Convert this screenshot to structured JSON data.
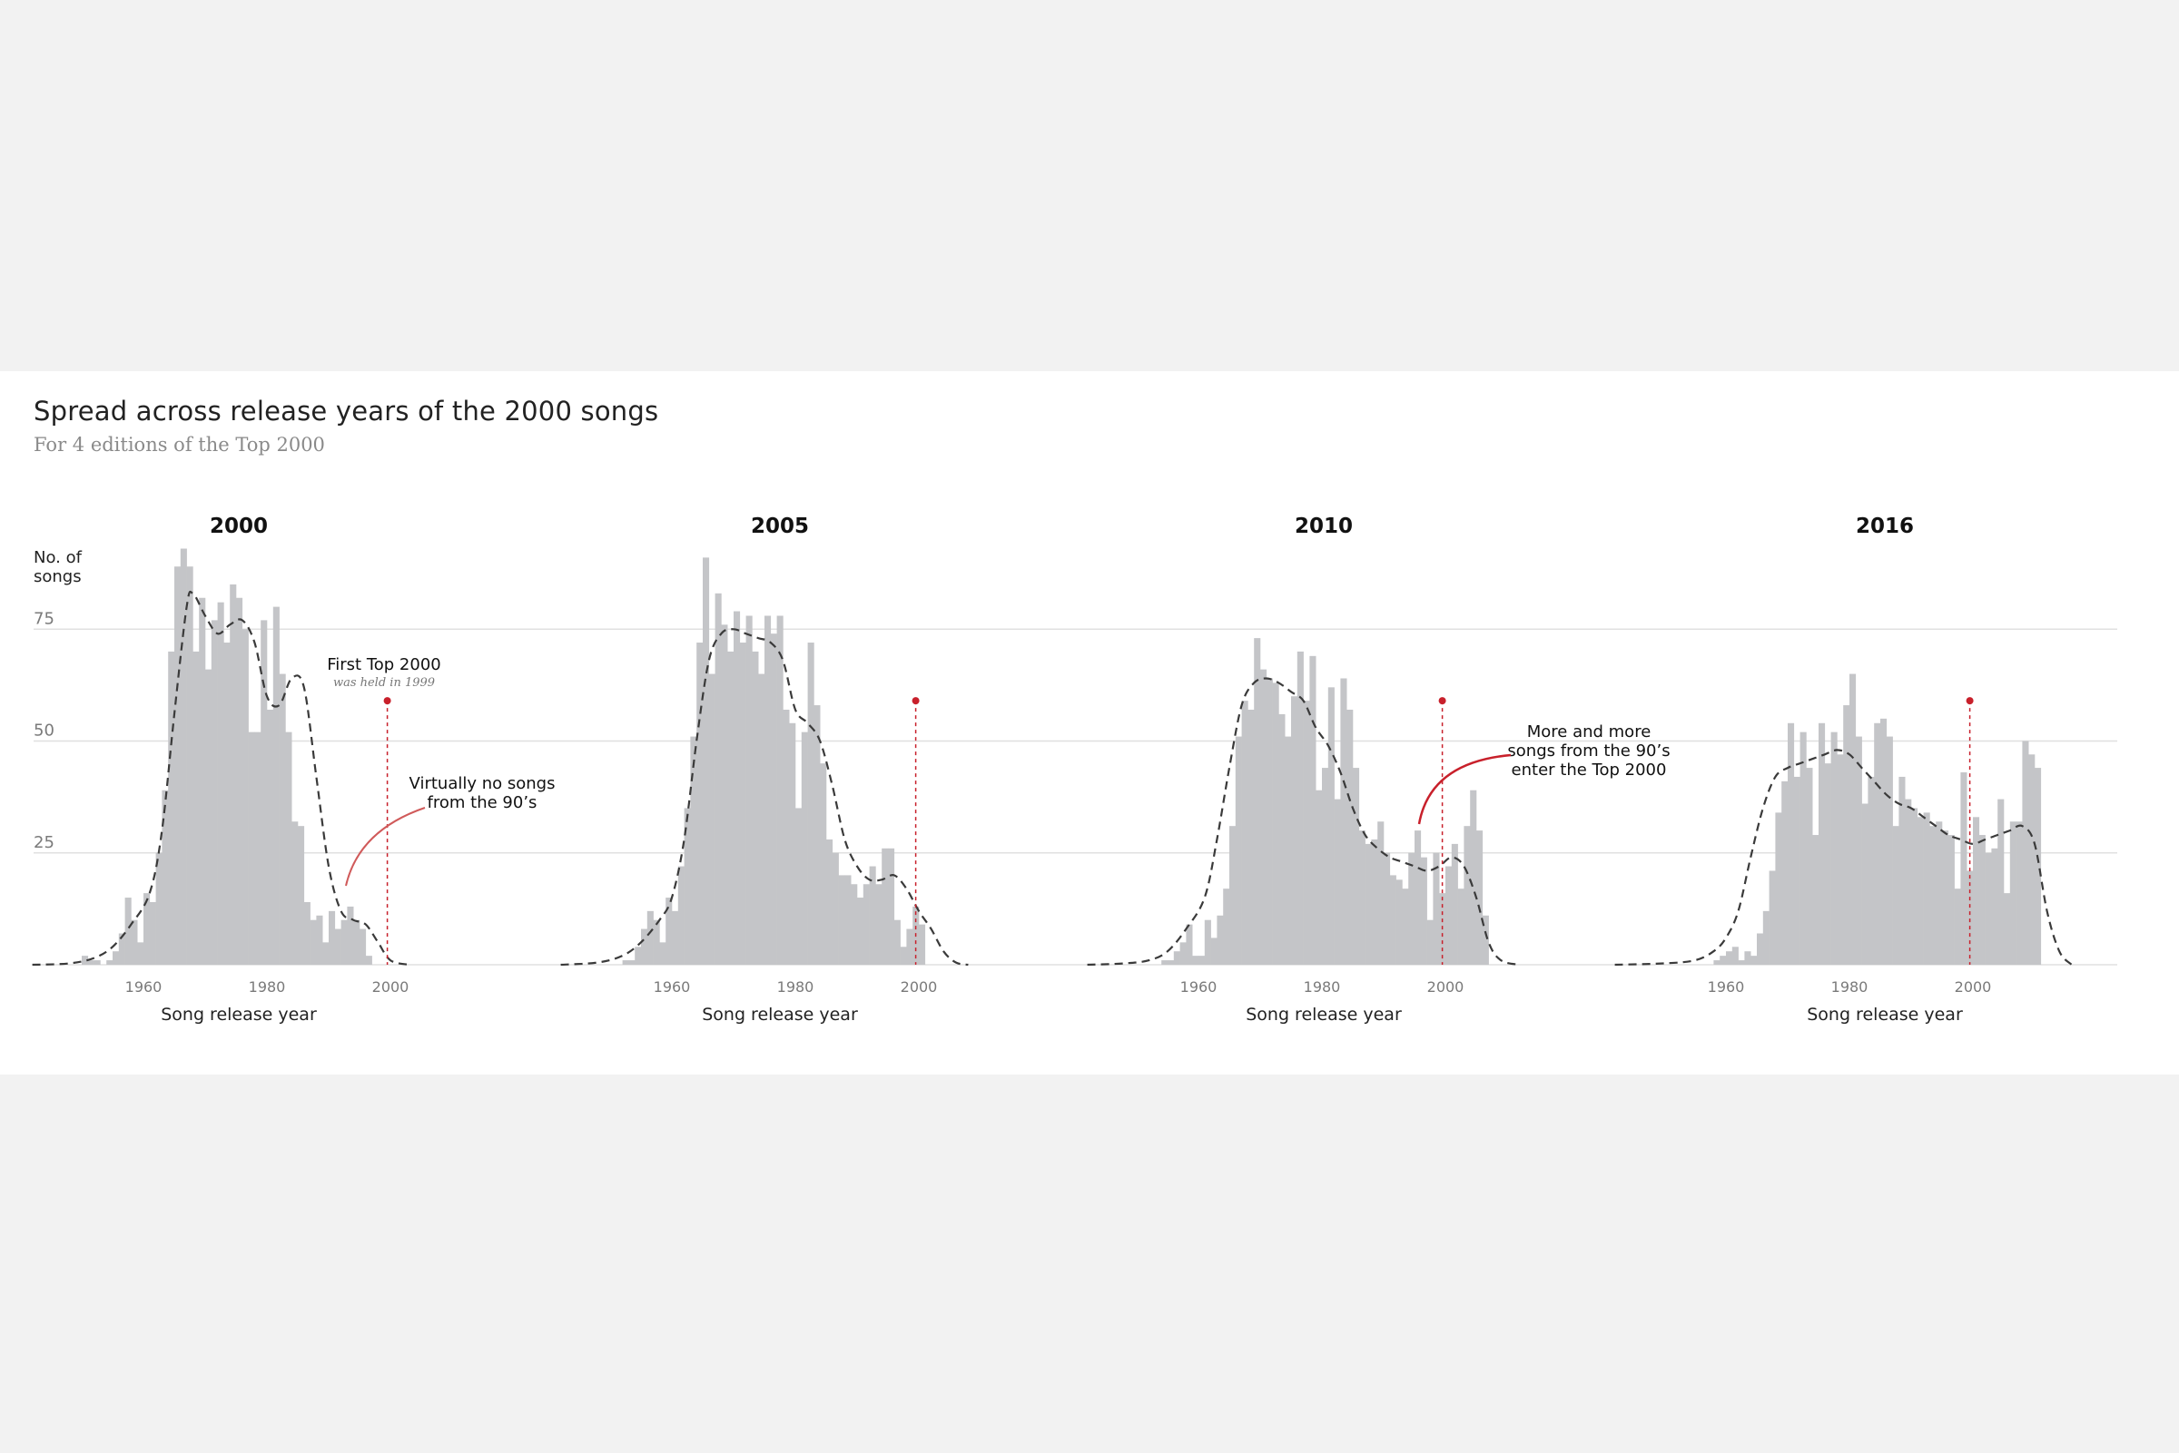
{
  "chart_data": {
    "type": "bar",
    "title": "Spread across release years of the 2000 songs",
    "subtitle": "For 4 editions of the Top 2000",
    "ylabel": [
      "No. of",
      "songs"
    ],
    "xlabel": "Song release year",
    "yticks": [
      25,
      50,
      75
    ],
    "xticks": [
      1960,
      1980,
      2000
    ],
    "ylim": [
      0,
      95
    ],
    "xlim": [
      1942,
      2020
    ],
    "panels": [
      {
        "edition": "2000",
        "x": [
          1950,
          1951,
          1952,
          1953,
          1954,
          1955,
          1956,
          1957,
          1958,
          1959,
          1960,
          1961,
          1962,
          1963,
          1964,
          1965,
          1966,
          1967,
          1968,
          1969,
          1970,
          1971,
          1972,
          1973,
          1974,
          1975,
          1976,
          1977,
          1978,
          1979,
          1980,
          1981,
          1982,
          1983,
          1984,
          1985,
          1986,
          1987,
          1988,
          1989,
          1990,
          1991,
          1992,
          1993,
          1994,
          1995,
          1996,
          1997,
          1998,
          1999
        ],
        "values": [
          2,
          1,
          1,
          0,
          1,
          3,
          7,
          15,
          10,
          5,
          16,
          14,
          25,
          39,
          70,
          89,
          93,
          89,
          70,
          82,
          66,
          77,
          81,
          72,
          85,
          82,
          75,
          52,
          52,
          77,
          57,
          80,
          65,
          52,
          32,
          31,
          14,
          10,
          11,
          5,
          12,
          8,
          10,
          13,
          10,
          8,
          2,
          0,
          0,
          0
        ],
        "density": [
          [
            1942,
            0
          ],
          [
            1948,
            0.3
          ],
          [
            1952,
            1.5
          ],
          [
            1955,
            4
          ],
          [
            1958,
            9
          ],
          [
            1961,
            16
          ],
          [
            1963,
            30
          ],
          [
            1965,
            56
          ],
          [
            1967,
            80
          ],
          [
            1968,
            83
          ],
          [
            1970,
            78
          ],
          [
            1972,
            74
          ],
          [
            1974,
            76
          ],
          [
            1976,
            77
          ],
          [
            1978,
            72
          ],
          [
            1980,
            60
          ],
          [
            1982,
            58
          ],
          [
            1984,
            64
          ],
          [
            1986,
            62
          ],
          [
            1988,
            42
          ],
          [
            1990,
            22
          ],
          [
            1992,
            12
          ],
          [
            1994,
            10
          ],
          [
            1996,
            9
          ],
          [
            1998,
            5
          ],
          [
            2000,
            1
          ],
          [
            2003,
            0
          ]
        ]
      },
      {
        "edition": "2005",
        "x": [
          1950,
          1951,
          1952,
          1953,
          1954,
          1955,
          1956,
          1957,
          1958,
          1959,
          1960,
          1961,
          1962,
          1963,
          1964,
          1965,
          1966,
          1967,
          1968,
          1969,
          1970,
          1971,
          1972,
          1973,
          1974,
          1975,
          1976,
          1977,
          1978,
          1979,
          1980,
          1981,
          1982,
          1983,
          1984,
          1985,
          1986,
          1987,
          1988,
          1989,
          1990,
          1991,
          1992,
          1993,
          1994,
          1995,
          1996,
          1997,
          1998,
          1999,
          2000,
          2001,
          2002,
          2003,
          2004
        ],
        "values": [
          0,
          0,
          1,
          1,
          4,
          8,
          12,
          10,
          5,
          15,
          12,
          22,
          35,
          51,
          72,
          91,
          65,
          83,
          76,
          70,
          79,
          72,
          78,
          70,
          65,
          78,
          74,
          78,
          57,
          54,
          35,
          52,
          72,
          58,
          45,
          28,
          25,
          20,
          20,
          18,
          15,
          18,
          22,
          18,
          26,
          26,
          10,
          4,
          8,
          13,
          9,
          0,
          0,
          0,
          0
        ],
        "density": [
          [
            1942,
            0
          ],
          [
            1948,
            0.5
          ],
          [
            1952,
            2
          ],
          [
            1955,
            5
          ],
          [
            1958,
            10
          ],
          [
            1960,
            15
          ],
          [
            1962,
            28
          ],
          [
            1964,
            50
          ],
          [
            1966,
            68
          ],
          [
            1968,
            74
          ],
          [
            1970,
            75
          ],
          [
            1972,
            74
          ],
          [
            1974,
            73
          ],
          [
            1976,
            72
          ],
          [
            1978,
            68
          ],
          [
            1980,
            57
          ],
          [
            1982,
            54
          ],
          [
            1984,
            50
          ],
          [
            1986,
            40
          ],
          [
            1988,
            28
          ],
          [
            1990,
            22
          ],
          [
            1992,
            19
          ],
          [
            1994,
            19
          ],
          [
            1996,
            20
          ],
          [
            1998,
            17
          ],
          [
            2000,
            12
          ],
          [
            2002,
            8
          ],
          [
            2004,
            3
          ],
          [
            2006,
            0.5
          ],
          [
            2008,
            0
          ]
        ]
      },
      {
        "edition": "2010",
        "x": [
          1950,
          1951,
          1952,
          1953,
          1954,
          1955,
          1956,
          1957,
          1958,
          1959,
          1960,
          1961,
          1962,
          1963,
          1964,
          1965,
          1966,
          1967,
          1968,
          1969,
          1970,
          1971,
          1972,
          1973,
          1974,
          1975,
          1976,
          1977,
          1978,
          1979,
          1980,
          1981,
          1982,
          1983,
          1984,
          1985,
          1986,
          1987,
          1988,
          1989,
          1990,
          1991,
          1992,
          1993,
          1994,
          1995,
          1996,
          1997,
          1998,
          1999,
          2000,
          2001,
          2002,
          2003,
          2004,
          2005,
          2006,
          2007,
          2008,
          2009
        ],
        "values": [
          0,
          0,
          0,
          0,
          1,
          1,
          3,
          5,
          9,
          2,
          2,
          10,
          6,
          11,
          17,
          31,
          51,
          59,
          57,
          73,
          66,
          64,
          63,
          56,
          51,
          60,
          70,
          59,
          69,
          39,
          44,
          62,
          37,
          64,
          57,
          44,
          30,
          27,
          28,
          32,
          25,
          20,
          19,
          17,
          25,
          30,
          24,
          10,
          25,
          16,
          22,
          27,
          17,
          31,
          39,
          30,
          11,
          0,
          0,
          0
        ],
        "density": [
          [
            1942,
            0
          ],
          [
            1948,
            0.3
          ],
          [
            1952,
            1
          ],
          [
            1955,
            3
          ],
          [
            1958,
            8
          ],
          [
            1961,
            15
          ],
          [
            1963,
            28
          ],
          [
            1965,
            44
          ],
          [
            1967,
            58
          ],
          [
            1969,
            63
          ],
          [
            1971,
            64
          ],
          [
            1973,
            63
          ],
          [
            1975,
            61
          ],
          [
            1977,
            59
          ],
          [
            1979,
            53
          ],
          [
            1981,
            49
          ],
          [
            1983,
            43
          ],
          [
            1985,
            35
          ],
          [
            1987,
            29
          ],
          [
            1989,
            26
          ],
          [
            1991,
            24
          ],
          [
            1993,
            23
          ],
          [
            1995,
            22
          ],
          [
            1997,
            21
          ],
          [
            1999,
            22
          ],
          [
            2001,
            24
          ],
          [
            2003,
            22
          ],
          [
            2005,
            15
          ],
          [
            2007,
            5
          ],
          [
            2009,
            1
          ],
          [
            2012,
            0
          ]
        ]
      },
      {
        "edition": "2016",
        "x": [
          1950,
          1951,
          1952,
          1953,
          1954,
          1955,
          1956,
          1957,
          1958,
          1959,
          1960,
          1961,
          1962,
          1963,
          1964,
          1965,
          1966,
          1967,
          1968,
          1969,
          1970,
          1971,
          1972,
          1973,
          1974,
          1975,
          1976,
          1977,
          1978,
          1979,
          1980,
          1981,
          1982,
          1983,
          1984,
          1985,
          1986,
          1987,
          1988,
          1989,
          1990,
          1991,
          1992,
          1993,
          1994,
          1995,
          1996,
          1997,
          1998,
          1999,
          2000,
          2001,
          2002,
          2003,
          2004,
          2005,
          2006,
          2007,
          2008,
          2009,
          2010,
          2011,
          2012,
          2013,
          2014,
          2015
        ],
        "values": [
          0,
          0,
          0,
          0,
          0,
          0,
          0,
          0,
          1,
          2,
          3,
          4,
          1,
          3,
          2,
          7,
          12,
          21,
          34,
          41,
          54,
          42,
          52,
          44,
          29,
          54,
          45,
          52,
          47,
          58,
          65,
          51,
          36,
          42,
          54,
          55,
          51,
          31,
          42,
          37,
          35,
          33,
          34,
          31,
          32,
          30,
          29,
          17,
          43,
          21,
          33,
          29,
          25,
          26,
          37,
          16,
          32,
          32,
          50,
          47,
          44,
          0,
          0,
          0,
          0,
          0
        ],
        "density": [
          [
            1942,
            0
          ],
          [
            1950,
            0.3
          ],
          [
            1955,
            1
          ],
          [
            1958,
            3
          ],
          [
            1960,
            6
          ],
          [
            1962,
            12
          ],
          [
            1964,
            24
          ],
          [
            1966,
            35
          ],
          [
            1968,
            42
          ],
          [
            1970,
            44
          ],
          [
            1972,
            45
          ],
          [
            1974,
            46
          ],
          [
            1976,
            47
          ],
          [
            1978,
            48
          ],
          [
            1980,
            47
          ],
          [
            1982,
            44
          ],
          [
            1984,
            41
          ],
          [
            1986,
            38
          ],
          [
            1988,
            36
          ],
          [
            1990,
            35
          ],
          [
            1992,
            33
          ],
          [
            1994,
            31
          ],
          [
            1996,
            29
          ],
          [
            1998,
            28
          ],
          [
            2000,
            27
          ],
          [
            2002,
            28
          ],
          [
            2004,
            29
          ],
          [
            2006,
            30
          ],
          [
            2008,
            31
          ],
          [
            2010,
            27
          ],
          [
            2012,
            12
          ],
          [
            2014,
            3
          ],
          [
            2016,
            0
          ]
        ]
      }
    ],
    "reference_year": 1999,
    "reference_marker_value": 59,
    "annotations": {
      "first_top": "First Top 2000",
      "first_top_sub": "was held in 1999",
      "virtually_line1": "Virtually no songs",
      "virtually_line2": "from the 90’s",
      "more_line1": "More and more",
      "more_line2": "songs from the 90’s",
      "more_line3": "enter the Top 2000"
    },
    "grid": true,
    "colors": {
      "bar": "#c4c5c8",
      "density": "#3a3a3a",
      "reference": "#c8202b",
      "grid": "#e0e0e0",
      "axis_text": "#7a7a7a"
    }
  }
}
